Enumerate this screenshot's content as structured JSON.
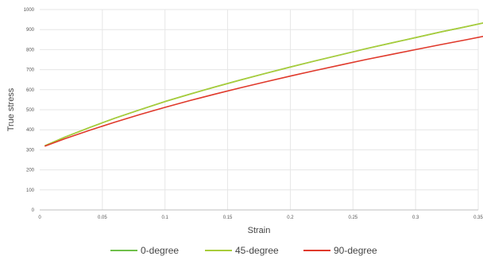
{
  "chart_data": {
    "type": "line",
    "xlabel": "Strain",
    "ylabel": "True stress",
    "xlim": [
      0,
      0.35
    ],
    "ylim": [
      0,
      1000
    ],
    "xticks": [
      0,
      0.05,
      0.1,
      0.15,
      0.2,
      0.25,
      0.3,
      0.35
    ],
    "xtick_labels": [
      "0",
      "0.05",
      "0.1",
      "0.15",
      "0.2",
      "0.25",
      "0.3",
      "0.35"
    ],
    "yticks": [
      0,
      100,
      200,
      300,
      400,
      500,
      600,
      700,
      800,
      900,
      1000
    ],
    "ytick_labels": [
      "0",
      "100",
      "200",
      "300",
      "400",
      "500",
      "600",
      "700",
      "800",
      "900",
      "1000"
    ],
    "grid": true,
    "legend_position": "bottom",
    "x": [
      0.004,
      0.02,
      0.04,
      0.06,
      0.08,
      0.1,
      0.12,
      0.14,
      0.16,
      0.18,
      0.2,
      0.22,
      0.24,
      0.26,
      0.28,
      0.3,
      0.32,
      0.34,
      0.357
    ],
    "series": [
      {
        "name": "0-degree",
        "color": "#6fbf4a",
        "values": [
          320,
          363,
          412,
          458,
          500,
          541,
          578,
          614,
          648,
          681,
          713,
          744,
          774,
          804,
          832,
          860,
          888,
          914,
          937
        ]
      },
      {
        "name": "45-degree",
        "color": "#a8cc3a",
        "values": [
          320,
          363,
          412,
          458,
          500,
          541,
          578,
          614,
          648,
          681,
          713,
          744,
          774,
          804,
          832,
          860,
          888,
          914,
          937
        ]
      },
      {
        "name": "90-degree",
        "color": "#e0392b",
        "values": [
          318,
          355,
          398,
          438,
          476,
          512,
          546,
          578,
          609,
          639,
          668,
          696,
          723,
          750,
          775,
          800,
          825,
          849,
          870
        ]
      }
    ]
  }
}
